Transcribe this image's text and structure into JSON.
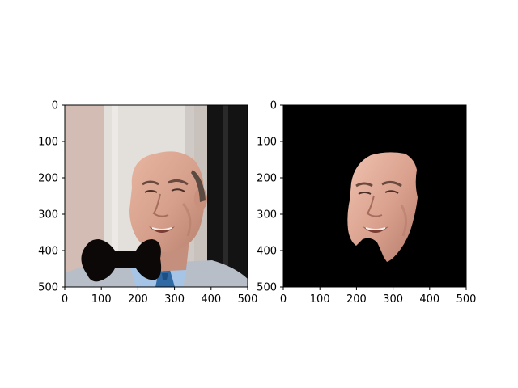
{
  "chart_data": [
    {
      "type": "image",
      "content": "photo",
      "xlim": [
        0,
        500
      ],
      "ylim": [
        500,
        0
      ],
      "xticks": [
        0,
        100,
        200,
        300,
        400,
        500
      ],
      "yticks": [
        0,
        100,
        200,
        300,
        400,
        500
      ],
      "x_tick_labels": [
        "0",
        "100",
        "200",
        "300",
        "400",
        "500"
      ],
      "y_tick_labels": [
        "0",
        "100",
        "200",
        "300",
        "400",
        "500"
      ],
      "xlabel": "",
      "ylabel": "",
      "title": "",
      "grid": false,
      "overlay": "bow-tie"
    },
    {
      "type": "image",
      "content": "segmented-face-mask",
      "background_color": "#000000",
      "xlim": [
        0,
        500
      ],
      "ylim": [
        500,
        0
      ],
      "xticks": [
        0,
        100,
        200,
        300,
        400,
        500
      ],
      "yticks": [
        0,
        100,
        200,
        300,
        400,
        500
      ],
      "x_tick_labels": [
        "0",
        "100",
        "200",
        "300",
        "400",
        "500"
      ],
      "y_tick_labels": [
        "0",
        "100",
        "200",
        "300",
        "400",
        "500"
      ],
      "xlabel": "",
      "ylabel": "",
      "title": "",
      "grid": false
    }
  ],
  "colors": {
    "skin": "#d8a38e",
    "shirt": "#9cc0e3",
    "suit": "#b9bfc8",
    "tie": "#2f6aa5",
    "bow_tie": "#0c0807",
    "wall": "#d9c9c1",
    "pillar": "#e6e3df",
    "dark_door": "#151515",
    "mask_background": "#000000"
  }
}
